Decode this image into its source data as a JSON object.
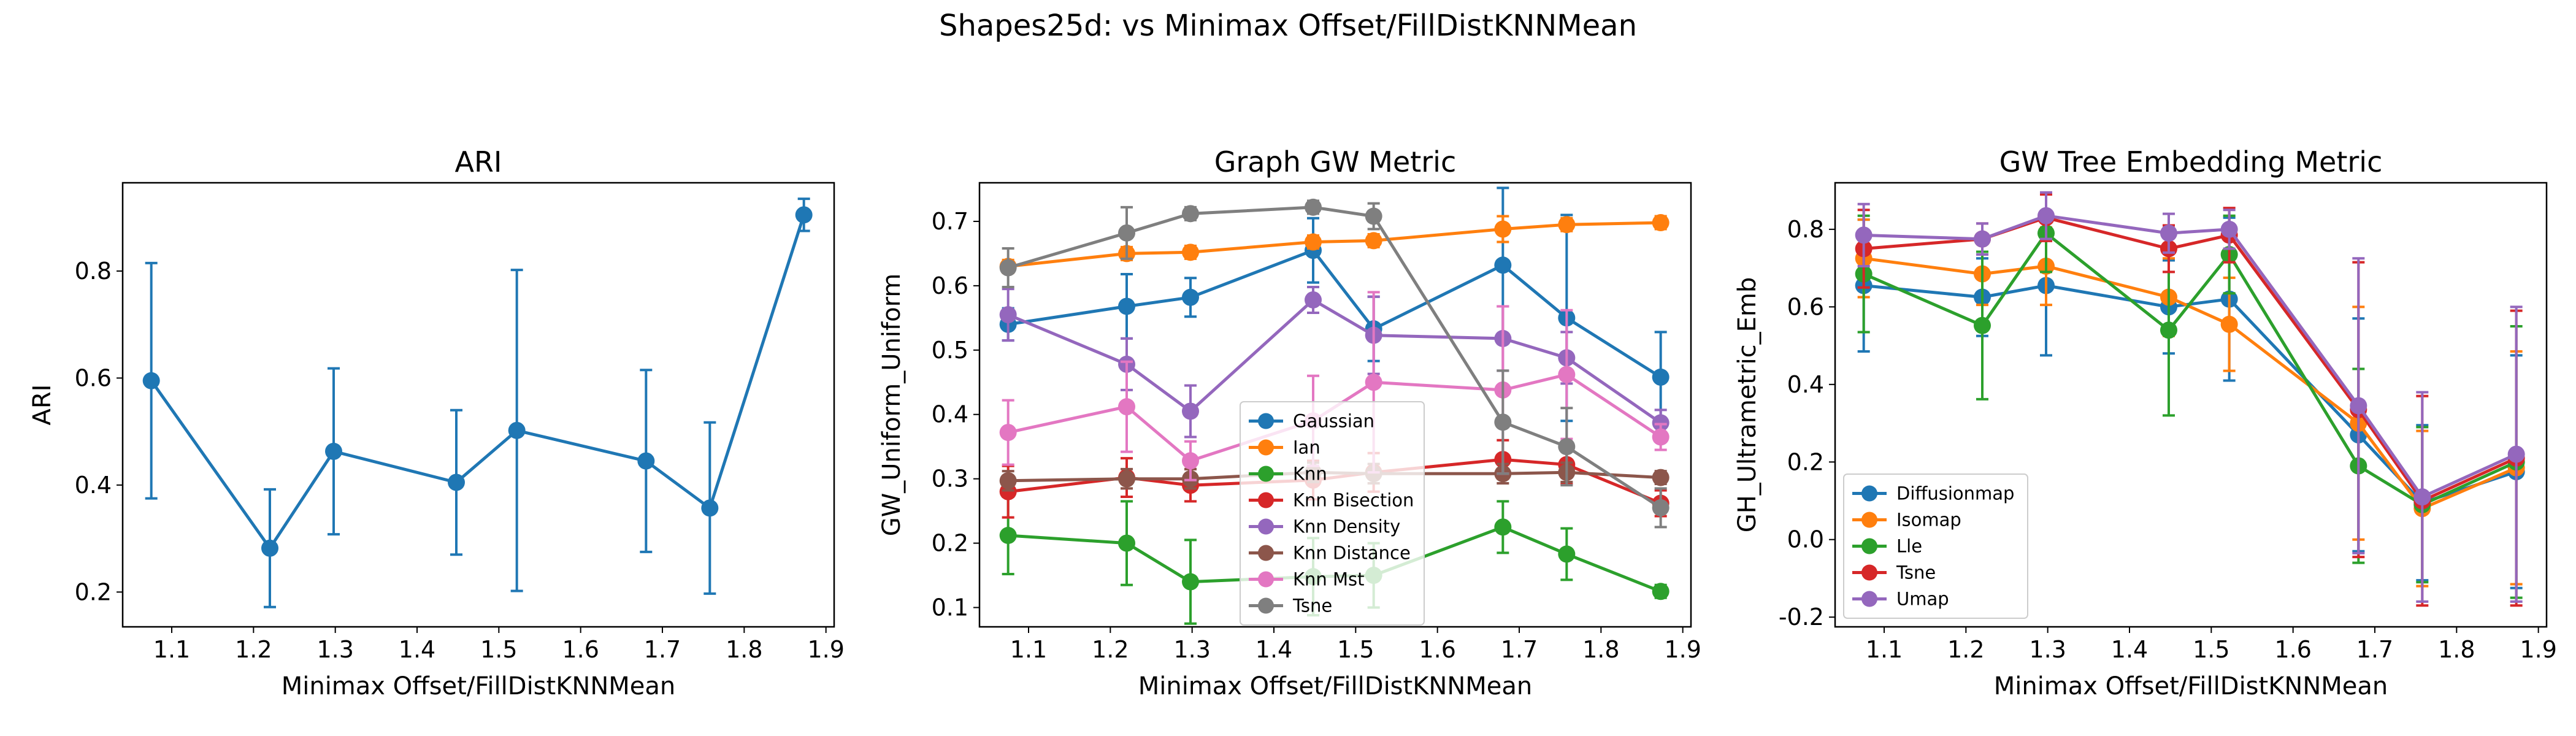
{
  "suptitle": "Shapes25d: vs Minimax Offset/FillDistKNNMean",
  "colors": {
    "blue": "#1f77b4",
    "orange": "#ff7f0e",
    "green": "#2ca02c",
    "red": "#d62728",
    "purple": "#9467bd",
    "brown": "#8c564b",
    "pink": "#e377c2",
    "gray": "#7f7f7f"
  },
  "chart_data": [
    {
      "type": "line",
      "title": "ARI",
      "xlabel": "Minimax Offset/FillDistKNNMean",
      "ylabel": "ARI",
      "xlim": [
        1.04,
        1.91
      ],
      "ylim": [
        0.135,
        0.965
      ],
      "xticks": [
        1.1,
        1.2,
        1.3,
        1.4,
        1.5,
        1.6,
        1.7,
        1.8,
        1.9
      ],
      "yticks": [
        0.2,
        0.4,
        0.6,
        0.8
      ],
      "x": [
        1.075,
        1.22,
        1.298,
        1.448,
        1.522,
        1.68,
        1.758,
        1.873
      ],
      "series": [
        {
          "color": "#1f77b4",
          "values": [
            0.595,
            0.282,
            0.463,
            0.405,
            0.502,
            0.445,
            0.357,
            0.905
          ],
          "err": [
            0.22,
            0.11,
            0.155,
            0.135,
            0.3,
            0.17,
            0.16,
            0.03
          ]
        }
      ]
    },
    {
      "type": "line",
      "title": "Graph GW Metric",
      "xlabel": "Minimax Offset/FillDistKNNMean",
      "ylabel": "GW_Uniform_Uniform",
      "xlim": [
        1.04,
        1.91
      ],
      "ylim": [
        0.07,
        0.76
      ],
      "xticks": [
        1.1,
        1.2,
        1.3,
        1.4,
        1.5,
        1.6,
        1.7,
        1.8,
        1.9
      ],
      "yticks": [
        0.1,
        0.2,
        0.3,
        0.4,
        0.5,
        0.6,
        0.7
      ],
      "x": [
        1.075,
        1.22,
        1.298,
        1.448,
        1.522,
        1.68,
        1.758,
        1.873
      ],
      "legend": "center",
      "series": [
        {
          "name": "Gaussian",
          "color": "#1f77b4",
          "values": [
            0.54,
            0.568,
            0.582,
            0.655,
            0.533,
            0.632,
            0.55,
            0.458
          ],
          "err": [
            0.025,
            0.05,
            0.03,
            0.05,
            0.05,
            0.12,
            0.16,
            0.07
          ]
        },
        {
          "name": "Ian",
          "color": "#ff7f0e",
          "values": [
            0.63,
            0.65,
            0.652,
            0.668,
            0.67,
            0.688,
            0.695,
            0.698
          ],
          "err": [
            0.01,
            0.01,
            0.01,
            0.01,
            0.01,
            0.02,
            0.01,
            0.01
          ]
        },
        {
          "name": "Knn",
          "color": "#2ca02c",
          "values": [
            0.212,
            0.2,
            0.14,
            0.148,
            0.15,
            0.225,
            0.183,
            0.125
          ],
          "err": [
            0.06,
            0.065,
            0.065,
            0.06,
            0.05,
            0.04,
            0.04,
            0.01
          ]
        },
        {
          "name": "Knn Bisection",
          "color": "#d62728",
          "values": [
            0.28,
            0.302,
            0.29,
            0.298,
            0.31,
            0.33,
            0.322,
            0.262
          ],
          "err": [
            0.04,
            0.03,
            0.025,
            0.03,
            0.03,
            0.03,
            0.03,
            0.02
          ]
        },
        {
          "name": "Knn Density",
          "color": "#9467bd",
          "values": [
            0.555,
            0.478,
            0.405,
            0.578,
            0.523,
            0.518,
            0.488,
            0.387
          ],
          "err": [
            0.04,
            0.04,
            0.04,
            0.02,
            0.06,
            0.05,
            0.04,
            0.02
          ]
        },
        {
          "name": "Knn Distance",
          "color": "#8c564b",
          "values": [
            0.297,
            0.3,
            0.3,
            0.31,
            0.308,
            0.308,
            0.31,
            0.302
          ],
          "err": [
            0.015,
            0.015,
            0.015,
            0.015,
            0.015,
            0.015,
            0.015,
            0.01
          ]
        },
        {
          "name": "Knn Mst",
          "color": "#e377c2",
          "values": [
            0.372,
            0.412,
            0.328,
            0.39,
            0.45,
            0.438,
            0.462,
            0.365
          ],
          "err": [
            0.05,
            0.07,
            0.03,
            0.07,
            0.14,
            0.13,
            0.1,
            0.02
          ]
        },
        {
          "name": "Tsne",
          "color": "#7f7f7f",
          "values": [
            0.628,
            0.682,
            0.712,
            0.722,
            0.708,
            0.388,
            0.35,
            0.255
          ],
          "err": [
            0.03,
            0.04,
            0.01,
            0.01,
            0.02,
            0.08,
            0.06,
            0.03
          ]
        }
      ]
    },
    {
      "type": "line",
      "title": "GW Tree Embedding Metric",
      "xlabel": "Minimax Offset/FillDistKNNMean",
      "ylabel": "GH_Ultrametric_Emb",
      "xlim": [
        1.04,
        1.91
      ],
      "ylim": [
        -0.225,
        0.92
      ],
      "xticks": [
        1.1,
        1.2,
        1.3,
        1.4,
        1.5,
        1.6,
        1.7,
        1.8,
        1.9
      ],
      "yticks": [
        -0.2,
        0.0,
        0.2,
        0.4,
        0.6,
        0.8
      ],
      "x": [
        1.075,
        1.22,
        1.298,
        1.448,
        1.522,
        1.68,
        1.758,
        1.873
      ],
      "legend": "lower left",
      "series": [
        {
          "name": "Diffusionmap",
          "color": "#1f77b4",
          "values": [
            0.655,
            0.625,
            0.655,
            0.6,
            0.62,
            0.27,
            0.095,
            0.175
          ],
          "err": [
            0.17,
            0.1,
            0.18,
            0.12,
            0.21,
            0.3,
            0.2,
            0.3
          ]
        },
        {
          "name": "Isomap",
          "color": "#ff7f0e",
          "values": [
            0.725,
            0.685,
            0.705,
            0.625,
            0.555,
            0.3,
            0.08,
            0.185
          ],
          "err": [
            0.1,
            0.08,
            0.1,
            0.1,
            0.12,
            0.3,
            0.2,
            0.3
          ]
        },
        {
          "name": "Lle",
          "color": "#2ca02c",
          "values": [
            0.685,
            0.552,
            0.79,
            0.54,
            0.735,
            0.19,
            0.09,
            0.2
          ],
          "err": [
            0.15,
            0.19,
            0.1,
            0.22,
            0.1,
            0.25,
            0.2,
            0.35
          ]
        },
        {
          "name": "Tsne",
          "color": "#d62728",
          "values": [
            0.75,
            0.775,
            0.83,
            0.75,
            0.785,
            0.335,
            0.1,
            0.21
          ],
          "err": [
            0.1,
            0.04,
            0.06,
            0.06,
            0.07,
            0.38,
            0.27,
            0.38
          ]
        },
        {
          "name": "Umap",
          "color": "#9467bd",
          "values": [
            0.785,
            0.775,
            0.835,
            0.79,
            0.8,
            0.345,
            0.11,
            0.22
          ],
          "err": [
            0.08,
            0.04,
            0.06,
            0.05,
            0.05,
            0.38,
            0.27,
            0.38
          ]
        }
      ]
    }
  ]
}
